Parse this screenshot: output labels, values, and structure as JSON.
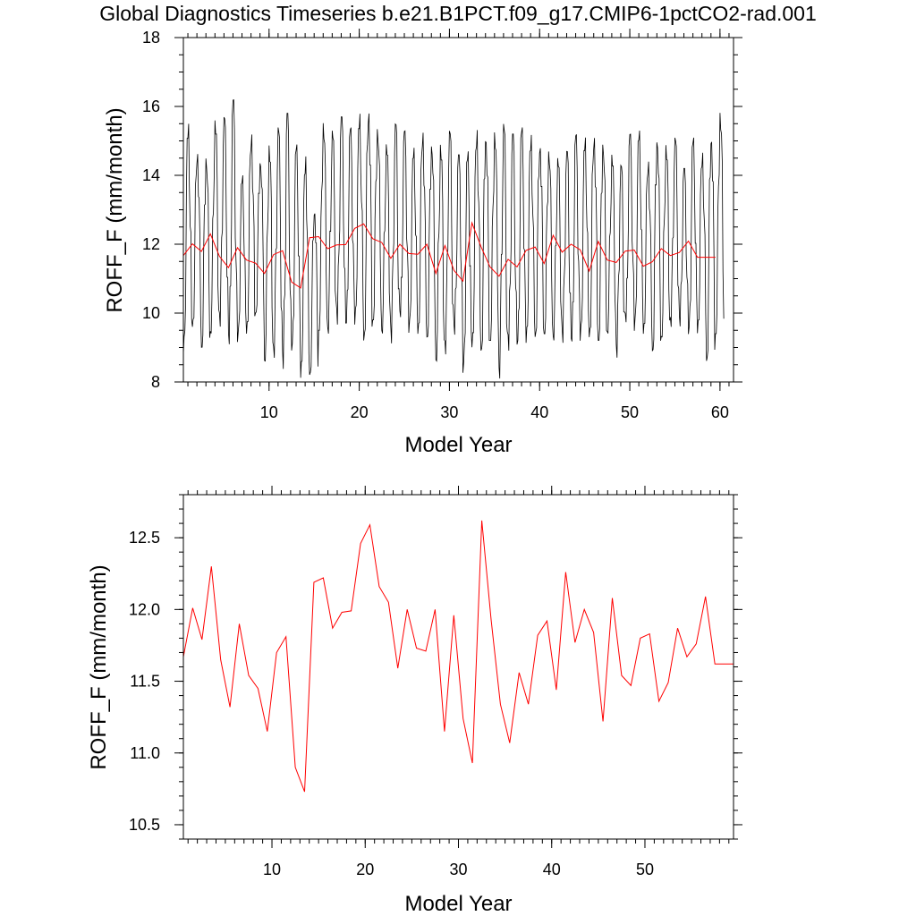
{
  "title": "Global Diagnostics Timeseries b.e21.B1PCT.f09_g17.CMIP6-1pctCO2-rad.001",
  "colors": {
    "monthly": "#000000",
    "annual": "#ff0000",
    "frame": "#000000"
  },
  "chart_data": [
    {
      "type": "line",
      "xlabel": "Model Year",
      "ylabel": "ROFF_F (mm/month)",
      "xlim": [
        0.5,
        61.5
      ],
      "ylim": [
        8,
        18
      ],
      "xticks": [
        10,
        20,
        30,
        40,
        50,
        60
      ],
      "xtick_labels": [
        "10",
        "20",
        "30",
        "40",
        "50",
        "60"
      ],
      "yticks": [
        8,
        10,
        12,
        14,
        16,
        18
      ],
      "ytick_labels": [
        "8",
        "10",
        "12",
        "14",
        "16",
        "18"
      ],
      "grid": false,
      "series": [
        {
          "kind": "monthly_seasonal_cycle",
          "color": "#000000",
          "x_start": 0.5,
          "x_step": 0.0833,
          "peak_values": [
            15.5,
            14.8,
            14.7,
            15.6,
            15.7,
            16.2,
            14.0,
            15.3,
            14.6,
            14.9,
            15.4,
            15.8,
            14.9,
            14.6,
            13.2,
            15.6,
            15.3,
            15.7,
            15.4,
            15.8,
            16.1,
            15.5,
            14.9,
            15.5,
            15.3,
            14.8,
            15.4,
            15.1,
            14.9,
            15.3,
            14.6,
            14.7,
            15.4,
            15.4,
            15.3,
            15.5,
            15.2,
            15.4,
            15.2,
            15.1,
            14.8,
            14.5,
            14.7,
            15.2,
            15.1,
            15.3,
            15.1,
            14.6,
            14.3,
            15.2,
            15.3,
            14.5,
            15.3,
            14.9,
            15.1,
            14.2,
            15.1,
            14.7,
            15.4,
            15.9
          ],
          "trough_values": [
            8.7,
            9.6,
            9.0,
            9.4,
            9.6,
            8.8,
            9.0,
            9.4,
            10.0,
            8.6,
            8.7,
            8.2,
            8.6,
            8.1,
            8.2,
            9.5,
            9.4,
            9.6,
            9.3,
            9.6,
            9.2,
            9.8,
            9.4,
            9.1,
            9.6,
            9.3,
            9.4,
            9.3,
            8.6,
            8.8,
            9.2,
            8.0,
            9.0,
            8.9,
            9.2,
            8.1,
            8.8,
            8.7,
            9.1,
            9.3,
            9.4,
            9.2,
            9.1,
            8.8,
            9.1,
            9.3,
            9.2,
            9.4,
            8.7,
            9.5,
            9.3,
            9.4,
            8.9,
            9.3,
            9.6,
            9.5,
            9.1,
            9.4,
            8.6,
            9.4
          ]
        },
        {
          "kind": "annual_mean",
          "color": "#ff0000",
          "x": [
            0.5,
            1.5,
            2.5,
            3.5,
            4.5,
            5.5,
            6.5,
            7.5,
            8.5,
            9.5,
            10.5,
            11.5,
            12.5,
            13.5,
            14.5,
            15.5,
            16.5,
            17.5,
            18.5,
            19.5,
            20.5,
            21.5,
            22.5,
            23.5,
            24.5,
            25.5,
            26.5,
            27.5,
            28.5,
            29.5,
            30.5,
            31.5,
            32.5,
            33.5,
            34.5,
            35.5,
            36.5,
            37.5,
            38.5,
            39.5,
            40.5,
            41.5,
            42.5,
            43.5,
            44.5,
            45.5,
            46.5,
            47.5,
            48.5,
            49.5,
            50.5,
            51.5,
            52.5,
            53.5,
            54.5,
            55.5,
            56.5,
            57.5,
            58.5,
            59.5
          ],
          "values": [
            11.67,
            12.01,
            11.79,
            12.3,
            11.65,
            11.32,
            11.9,
            11.54,
            11.45,
            11.15,
            11.7,
            11.81,
            10.9,
            10.73,
            12.19,
            12.22,
            11.87,
            11.98,
            11.99,
            12.46,
            12.59,
            12.16,
            12.05,
            11.59,
            12.0,
            11.73,
            11.71,
            12.0,
            11.15,
            11.96,
            11.24,
            10.93,
            12.62,
            11.93,
            11.34,
            11.07,
            11.56,
            11.34,
            11.82,
            11.92,
            11.44,
            12.26,
            11.77,
            12.0,
            11.84,
            11.22,
            12.08,
            11.54,
            11.47,
            11.8,
            11.83,
            11.36,
            11.49,
            11.87,
            11.67,
            11.76,
            12.09,
            11.62,
            11.62,
            11.62
          ]
        }
      ]
    },
    {
      "type": "line",
      "xlabel": "Model Year",
      "ylabel": "ROFF_F (mm/month)",
      "xlim": [
        0.5,
        59.5
      ],
      "ylim": [
        10.4,
        12.8
      ],
      "xticks": [
        10,
        20,
        30,
        40,
        50
      ],
      "xtick_labels": [
        "10",
        "20",
        "30",
        "40",
        "50"
      ],
      "yticks": [
        10.5,
        11.0,
        11.5,
        12.0,
        12.5
      ],
      "ytick_labels": [
        "10.5",
        "11.0",
        "11.5",
        "12.0",
        "12.5"
      ],
      "grid": false,
      "series": [
        {
          "kind": "annual_mean",
          "color": "#ff0000",
          "x": [
            0.5,
            1.5,
            2.5,
            3.5,
            4.5,
            5.5,
            6.5,
            7.5,
            8.5,
            9.5,
            10.5,
            11.5,
            12.5,
            13.5,
            14.5,
            15.5,
            16.5,
            17.5,
            18.5,
            19.5,
            20.5,
            21.5,
            22.5,
            23.5,
            24.5,
            25.5,
            26.5,
            27.5,
            28.5,
            29.5,
            30.5,
            31.5,
            32.5,
            33.5,
            34.5,
            35.5,
            36.5,
            37.5,
            38.5,
            39.5,
            40.5,
            41.5,
            42.5,
            43.5,
            44.5,
            45.5,
            46.5,
            47.5,
            48.5,
            49.5,
            50.5,
            51.5,
            52.5,
            53.5,
            54.5,
            55.5,
            56.5,
            57.5,
            58.5,
            59.5
          ],
          "values": [
            11.67,
            12.01,
            11.79,
            12.3,
            11.65,
            11.32,
            11.9,
            11.54,
            11.45,
            11.15,
            11.7,
            11.81,
            10.9,
            10.73,
            12.19,
            12.22,
            11.87,
            11.98,
            11.99,
            12.46,
            12.59,
            12.16,
            12.05,
            11.59,
            12.0,
            11.73,
            11.71,
            12.0,
            11.15,
            11.96,
            11.24,
            10.93,
            12.62,
            11.93,
            11.34,
            11.07,
            11.56,
            11.34,
            11.82,
            11.92,
            11.44,
            12.26,
            11.77,
            12.0,
            11.84,
            11.22,
            12.08,
            11.54,
            11.47,
            11.8,
            11.83,
            11.36,
            11.49,
            11.87,
            11.67,
            11.76,
            12.09,
            11.62,
            11.62,
            11.62
          ]
        }
      ]
    }
  ]
}
